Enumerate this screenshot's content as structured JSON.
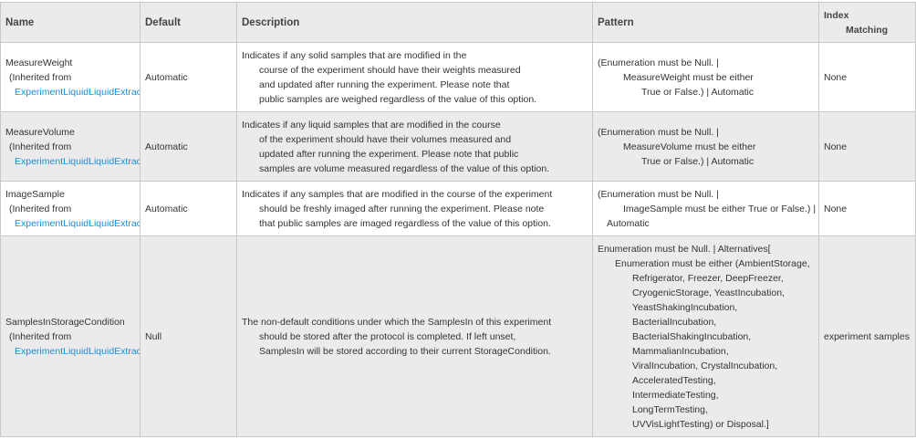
{
  "table": {
    "header": [
      "Name",
      "Default",
      "Description",
      "Pattern",
      [
        "Index",
        "Matching"
      ]
    ],
    "rows": [
      {
        "name": [
          "MeasureWeight",
          "(Inherited from",
          "ExperimentLiquidLiquidExtrac"
        ],
        "default": "Automatic",
        "description": [
          "Indicates if any solid samples that are modified in the",
          "course of the experiment should have their weights measured",
          "and updated after running the experiment. Please note that",
          "public samples are weighed regardless of the value of this option."
        ],
        "pattern": [
          "(Enumeration must be Null. |",
          "MeasureWeight must be either",
          "True or False.) | Automatic"
        ],
        "index_matching": "None"
      },
      {
        "name": [
          "MeasureVolume",
          "(Inherited from",
          "ExperimentLiquidLiquidExtrac"
        ],
        "default": "Automatic",
        "description": [
          "Indicates if any liquid samples that are modified in the course",
          "of the experiment should have their volumes measured and",
          "updated after running the experiment. Please note that public",
          "samples are volume measured regardless of the value of this option."
        ],
        "pattern": [
          "(Enumeration must be Null. |",
          "MeasureVolume must be either",
          "True or False.) | Automatic"
        ],
        "index_matching": "None"
      },
      {
        "name": [
          "ImageSample",
          "(Inherited from",
          "ExperimentLiquidLiquidExtrac"
        ],
        "default": "Automatic",
        "description": [
          "Indicates if any samples that are modified in the course of the experiment",
          "should be freshly imaged after running the experiment. Please note",
          "that public samples are imaged regardless of the value of this option."
        ],
        "pattern": [
          "(Enumeration must be Null. |",
          "ImageSample must be either True or False.) |",
          "Automatic"
        ],
        "index_matching": "None"
      },
      {
        "name": [
          "SamplesInStorageCondition",
          "(Inherited from",
          "ExperimentLiquidLiquidExtrac"
        ],
        "default": "Null",
        "description": [
          "The non-default conditions under which the SamplesIn of this experiment",
          "should be stored after the protocol is completed. If left unset,",
          "SamplesIn will be stored according to their current StorageCondition."
        ],
        "pattern": [
          "Enumeration must be Null. | Alternatives[",
          "Enumeration must be either (AmbientStorage,",
          "Refrigerator, Freezer, DeepFreezer,",
          "CryogenicStorage, YeastIncubation,",
          "YeastShakingIncubation,",
          "BacterialIncubation,",
          "BacterialShakingIncubation,",
          "MammalianIncubation,",
          "ViralIncubation, CrystalIncubation,",
          "AcceleratedTesting,",
          "IntermediateTesting,",
          "LongTermTesting,",
          "UVVisLightTesting) or Disposal.]"
        ],
        "index_matching": "experiment samples"
      }
    ]
  }
}
